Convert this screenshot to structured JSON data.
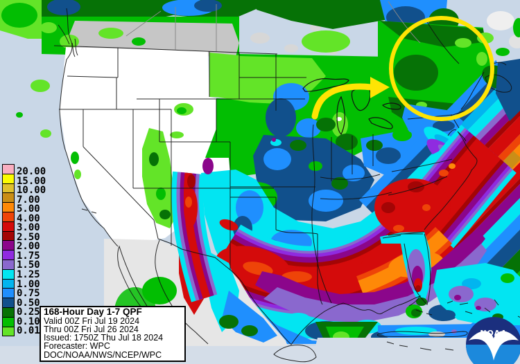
{
  "product": {
    "info_box": {
      "title": "168-Hour Day 1-7 QPF",
      "lines": [
        "Valid 00Z Fri Jul 19 2024",
        "Thru 00Z Fri Jul 26 2024",
        "Issued: 1750Z Thu Jul 18 2024",
        "Forecaster: WPC",
        "DOC/NOAA/NWS/NCEP/WPC"
      ]
    }
  },
  "legend": {
    "entries": [
      {
        "value": "20.00",
        "color": "#f9aec0"
      },
      {
        "value": "15.00",
        "color": "#fcfc02"
      },
      {
        "value": "10.00",
        "color": "#e0c12e"
      },
      {
        "value": "7.00",
        "color": "#ca8e17"
      },
      {
        "value": "5.00",
        "color": "#fe8908"
      },
      {
        "value": "4.00",
        "color": "#ee4408"
      },
      {
        "value": "3.00",
        "color": "#d40b0b"
      },
      {
        "value": "2.50",
        "color": "#a30505"
      },
      {
        "value": "2.00",
        "color": "#8b068b"
      },
      {
        "value": "1.75",
        "color": "#8f2be0"
      },
      {
        "value": "1.50",
        "color": "#8a68ce"
      },
      {
        "value": "1.25",
        "color": "#02e5f2"
      },
      {
        "value": "1.00",
        "color": "#02b5ef"
      },
      {
        "value": "0.75",
        "color": "#1f8ffe"
      },
      {
        "value": "0.50",
        "color": "#11508c"
      },
      {
        "value": "0.25",
        "color": "#067206"
      },
      {
        "value": "0.10",
        "color": "#02be02"
      },
      {
        "value": "0.01",
        "color": "#63e428"
      }
    ]
  },
  "logo": {
    "label": "NOAA"
  },
  "annotations": {
    "color": "#ffe404"
  },
  "base_colors": {
    "ocean": "#c9d7e7",
    "no_data_gray": "#c6c6c6",
    "dry_land": "#ffffff"
  }
}
